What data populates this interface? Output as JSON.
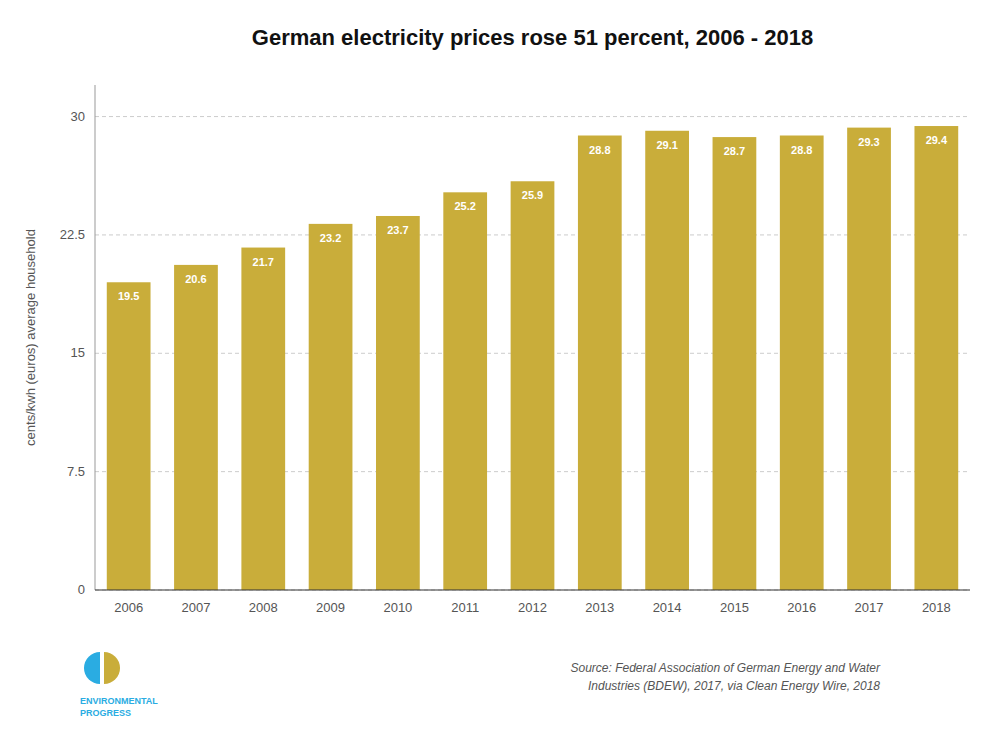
{
  "chart_data": {
    "type": "bar",
    "title": "German electricity prices rose 51 percent, 2006 - 2018",
    "y_label": "cents/kwh (euros) average household",
    "categories": [
      "2006",
      "2007",
      "2008",
      "2009",
      "2010",
      "2011",
      "2012",
      "2013",
      "2014",
      "2015",
      "2016",
      "2017",
      "2018"
    ],
    "values": [
      19.5,
      20.6,
      21.7,
      23.2,
      23.7,
      25.2,
      25.9,
      28.8,
      29.1,
      28.7,
      28.8,
      29.3,
      29.4
    ],
    "color": "#C9AD3A",
    "ylim": [
      0,
      32
    ],
    "yticks": [
      0,
      7.5,
      15,
      22.5,
      30
    ],
    "grid": true,
    "data_labels": true,
    "annotations": [
      "Source: Federal Association of German Energy and Water\nIndustries (BDEW), 2017, via Clean Energy Wire, 2018",
      "ENVIRONMENTAL\nPROGRESS"
    ]
  }
}
